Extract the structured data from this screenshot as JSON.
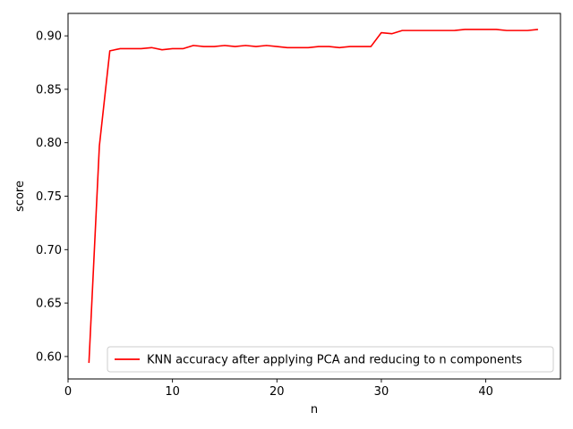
{
  "chart_data": {
    "type": "line",
    "title": "",
    "xlabel": "n",
    "ylabel": "score",
    "xlim": [
      0,
      47.15
    ],
    "ylim": [
      0.579,
      0.921
    ],
    "xticks": [
      0,
      10,
      20,
      30,
      40
    ],
    "yticks": [
      0.6,
      0.65,
      0.7,
      0.75,
      0.8,
      0.85,
      0.9
    ],
    "xtick_labels": [
      "0",
      "10",
      "20",
      "30",
      "40"
    ],
    "ytick_labels": [
      "0.60",
      "0.65",
      "0.70",
      "0.75",
      "0.80",
      "0.85",
      "0.90"
    ],
    "grid": false,
    "legend_position": "lower-right",
    "series": [
      {
        "name": "KNN accuracy after applying PCA and reducing to n components",
        "color": "#ff0000",
        "x": [
          2,
          3,
          4,
          5,
          6,
          7,
          8,
          9,
          10,
          11,
          12,
          13,
          14,
          15,
          16,
          17,
          18,
          19,
          20,
          21,
          22,
          23,
          24,
          25,
          26,
          27,
          28,
          29,
          30,
          31,
          32,
          33,
          34,
          35,
          36,
          37,
          38,
          39,
          40,
          41,
          42,
          43,
          44,
          45
        ],
        "y": [
          0.594,
          0.797,
          0.886,
          0.888,
          0.888,
          0.888,
          0.889,
          0.887,
          0.888,
          0.888,
          0.891,
          0.89,
          0.89,
          0.891,
          0.89,
          0.891,
          0.89,
          0.891,
          0.89,
          0.889,
          0.889,
          0.889,
          0.89,
          0.89,
          0.889,
          0.89,
          0.89,
          0.89,
          0.903,
          0.902,
          0.905,
          0.905,
          0.905,
          0.905,
          0.905,
          0.905,
          0.906,
          0.906,
          0.906,
          0.906,
          0.905,
          0.905,
          0.905,
          0.906
        ]
      }
    ]
  }
}
